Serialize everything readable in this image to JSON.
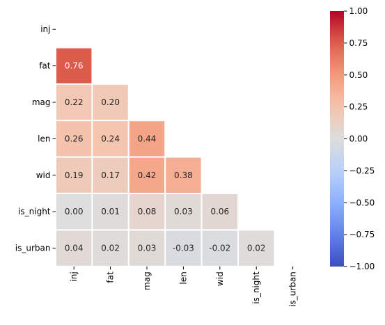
{
  "chart_data": {
    "type": "heatmap",
    "subtype": "lower-triangle-correlation-matrix",
    "title": "",
    "xlabel": "",
    "ylabel": "",
    "row_labels": [
      "inj",
      "fat",
      "mag",
      "len",
      "wid",
      "is_night",
      "is_urban"
    ],
    "col_labels": [
      "inj",
      "fat",
      "mag",
      "len",
      "wid",
      "is_night",
      "is_urban"
    ],
    "values": [
      [
        null,
        null,
        null,
        null,
        null,
        null,
        null
      ],
      [
        0.76,
        null,
        null,
        null,
        null,
        null,
        null
      ],
      [
        0.22,
        0.2,
        null,
        null,
        null,
        null,
        null
      ],
      [
        0.26,
        0.24,
        0.44,
        null,
        null,
        null,
        null
      ],
      [
        0.19,
        0.17,
        0.42,
        0.38,
        null,
        null,
        null
      ],
      [
        0.0,
        0.01,
        0.08,
        0.03,
        0.06,
        null,
        null
      ],
      [
        0.04,
        0.02,
        0.03,
        -0.03,
        -0.02,
        0.02,
        null
      ]
    ],
    "value_format": "2 decimals",
    "colorbar": {
      "colormap": "coolwarm",
      "vmin": -1.0,
      "vmax": 1.0,
      "ticks": [
        1.0,
        0.75,
        0.5,
        0.25,
        0.0,
        -0.25,
        -0.5,
        -0.75,
        -1.0
      ],
      "tick_labels": [
        "1.00",
        "0.75",
        "0.50",
        "0.25",
        "0.00",
        "−0.25",
        "−0.50",
        "−0.75",
        "−1.00"
      ],
      "placement": "right"
    },
    "grid": false,
    "cell_separator_color": "#ffffff",
    "annotation_text_color": "#262626"
  }
}
